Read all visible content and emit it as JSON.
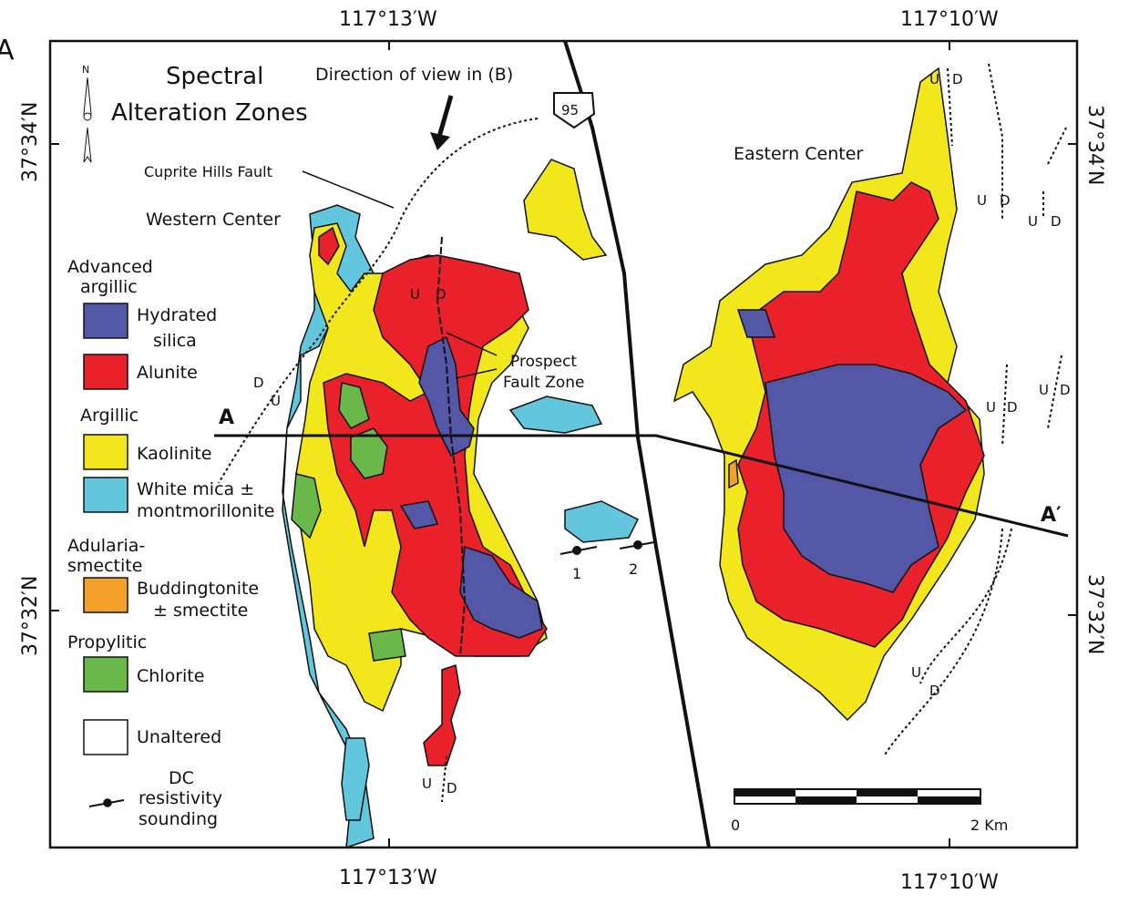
{
  "panel_label": "A",
  "title_line1": "Spectral",
  "title_line2": "Alteration Zones",
  "north_label": "N",
  "coords": {
    "top_left": "117°13′W",
    "top_right": "117°10′W",
    "bottom_left": "117°13′W",
    "bottom_right": "117°10′W",
    "left_top": "37°34′N",
    "left_bottom": "37°32′N",
    "right_top": "37°34′N",
    "right_bottom": "37°32′N"
  },
  "annotations": {
    "view_direction": "Direction of view in (B)",
    "highway": "95",
    "cuprite_fault": "Cuprite Hills Fault",
    "western_center": "Western Center",
    "eastern_center": "Eastern Center",
    "prospect_1": "Prospect",
    "prospect_2": "Fault Zone",
    "section_a": "A",
    "section_a_prime": "A′",
    "sounding_1": "1",
    "sounding_2": "2",
    "fault_up": "U",
    "fault_down": "D"
  },
  "legend": {
    "group_advanced_1": "Advanced",
    "group_advanced_2": "argillic",
    "hydrated_1": "Hydrated",
    "hydrated_2": "silica",
    "alunite": "Alunite",
    "group_argillic": "Argillic",
    "kaolinite": "Kaolinite",
    "whitemica_1": "White mica  ±",
    "whitemica_2": "montmorillonite",
    "group_adularia_1": "Adularia-",
    "group_adularia_2": "smectite",
    "budd_1": "Buddingtonite",
    "budd_2": "± smectite",
    "group_propylitic": "Propylitic",
    "chlorite": "Chlorite",
    "unaltered": "Unaltered",
    "dc_1": "DC",
    "dc_2": "resistivity",
    "dc_3": "sounding"
  },
  "scale_bar": {
    "start": "0",
    "end": "2 Km"
  },
  "colors": {
    "hydrated_silica": "#5457a6",
    "alunite": "#e8212b",
    "kaolinite": "#f2e61c",
    "white_mica": "#62c7dc",
    "buddingtonite": "#f4a12a",
    "chlorite": "#6ab84a",
    "unaltered": "#ffffff"
  }
}
